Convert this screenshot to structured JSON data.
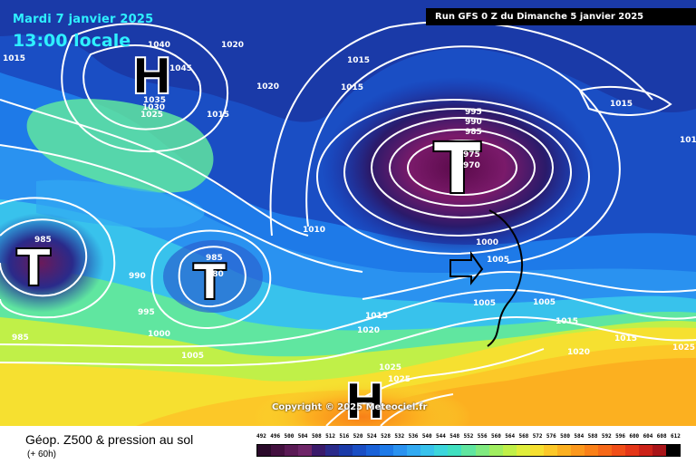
{
  "header": {
    "date": "Mardi 7 janvier 2025",
    "time": "13:00 locale",
    "run": "Run GFS 0 Z du Dimanche 5 janvier 2025"
  },
  "copyright": "Copyright © 2025 Meteociel.fr",
  "footer": {
    "title": "Géop. Z500 & pression au sol",
    "subtitle": "(+ 60h)"
  },
  "legend": {
    "values": [
      "492",
      "496",
      "500",
      "504",
      "508",
      "512",
      "516",
      "520",
      "524",
      "528",
      "532",
      "536",
      "540",
      "544",
      "548",
      "552",
      "556",
      "560",
      "564",
      "568",
      "572",
      "576",
      "580",
      "584",
      "588",
      "592",
      "596",
      "600",
      "604",
      "608",
      "612"
    ],
    "colors": [
      "#2a0a2a",
      "#43103f",
      "#5a1a55",
      "#6e2568",
      "#3a1a6a",
      "#2a2a8a",
      "#1a3aa8",
      "#1a4ec4",
      "#1a62d8",
      "#1e7ae8",
      "#2a92f0",
      "#32aaf2",
      "#38c2ec",
      "#3cd6dc",
      "#40e0c0",
      "#60e6a0",
      "#80ea80",
      "#a0ee60",
      "#c0f048",
      "#e0ee3c",
      "#f6e030",
      "#fcc828",
      "#fcb020",
      "#fc981c",
      "#fa8018",
      "#f66818",
      "#f04e18",
      "#e43618",
      "#cc2218",
      "#a81418",
      "#000000"
    ]
  },
  "systems": [
    {
      "symbol": "H",
      "type": "high"
    },
    {
      "symbol": "T",
      "type": "low"
    },
    {
      "symbol": "T",
      "type": "low"
    },
    {
      "symbol": "T",
      "type": "low"
    },
    {
      "symbol": "H",
      "type": "high"
    }
  ],
  "isobar_labels": [
    "1015",
    "1040",
    "1020",
    "1045",
    "1035",
    "1030",
    "1025",
    "1015",
    "1020",
    "1015",
    "1015",
    "995",
    "990",
    "985",
    "975",
    "970",
    "1015",
    "1010",
    "1000",
    "1005",
    "1005",
    "1005",
    "985",
    "990",
    "985",
    "980",
    "995",
    "1000",
    "985",
    "1005",
    "1015",
    "1020",
    "1025",
    "1025",
    "1015",
    "1020",
    "1025",
    "1015",
    "1010"
  ]
}
